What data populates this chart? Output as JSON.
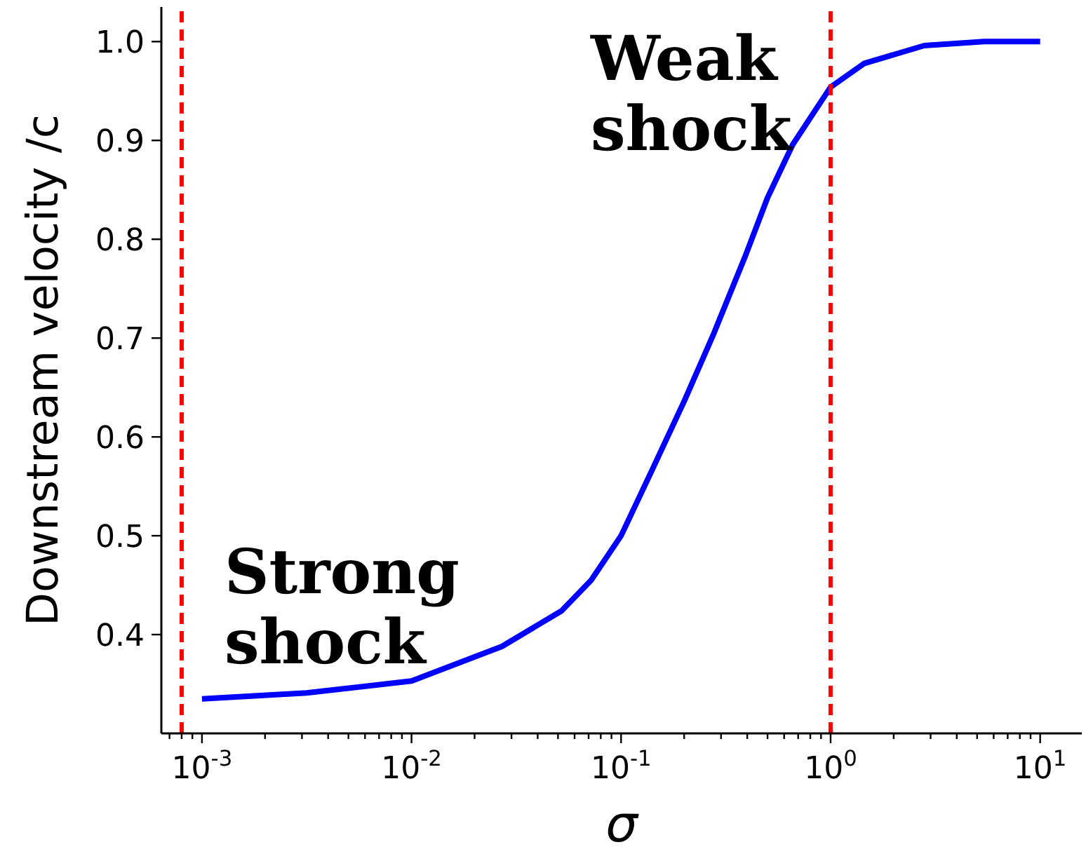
{
  "chart_data": {
    "type": "line",
    "xlabel": "σ",
    "ylabel": "Downstream velocity /c",
    "log": "x",
    "marker": "none",
    "line_style": "solid",
    "x": [
      0.001,
      0.00316,
      0.01,
      0.027,
      0.052,
      0.072,
      0.1,
      0.141,
      0.2,
      0.275,
      0.39,
      0.5,
      0.66,
      1,
      1.45,
      2.8,
      5.4,
      10
    ],
    "series": [
      {
        "color": "#0000ff",
        "values": [
          0.335,
          0.341,
          0.353,
          0.388,
          0.424,
          0.455,
          0.5,
          0.567,
          0.636,
          0.703,
          0.782,
          0.842,
          0.896,
          0.954,
          0.978,
          0.996,
          1.0,
          1.0
        ]
      }
    ],
    "xlim": [
      0.00064,
      15.8
    ],
    "ylim": [
      0.3,
      1.035
    ],
    "xticks": [
      {
        "value": 0.0007,
        "label": null
      },
      {
        "value": 0.0008,
        "label": null
      },
      {
        "value": 0.0009,
        "label": null
      },
      {
        "value": 0.001,
        "label": "10$^{-3}$"
      },
      {
        "value": 0.002,
        "label": null
      },
      {
        "value": 0.003,
        "label": null
      },
      {
        "value": 0.004,
        "label": null
      },
      {
        "value": 0.005,
        "label": null
      },
      {
        "value": 0.006,
        "label": null
      },
      {
        "value": 0.007,
        "label": null
      },
      {
        "value": 0.008,
        "label": null
      },
      {
        "value": 0.009,
        "label": null
      },
      {
        "value": 0.01,
        "label": "10$^{-2}$"
      },
      {
        "value": 0.02,
        "label": null
      },
      {
        "value": 0.03,
        "label": null
      },
      {
        "value": 0.04,
        "label": null
      },
      {
        "value": 0.05,
        "label": null
      },
      {
        "value": 0.06,
        "label": null
      },
      {
        "value": 0.07,
        "label": null
      },
      {
        "value": 0.08,
        "label": null
      },
      {
        "value": 0.09,
        "label": null
      },
      {
        "value": 0.1,
        "label": "10$^{-1}$"
      },
      {
        "value": 0.2,
        "label": null
      },
      {
        "value": 0.3,
        "label": null
      },
      {
        "value": 0.4,
        "label": null
      },
      {
        "value": 0.5,
        "label": null
      },
      {
        "value": 0.6,
        "label": null
      },
      {
        "value": 0.7,
        "label": null
      },
      {
        "value": 0.8,
        "label": null
      },
      {
        "value": 0.9,
        "label": null
      },
      {
        "value": 1,
        "label": "10$^{0}$"
      },
      {
        "value": 2,
        "label": null
      },
      {
        "value": 3,
        "label": null
      },
      {
        "value": 4,
        "label": null
      },
      {
        "value": 5,
        "label": null
      },
      {
        "value": 6,
        "label": null
      },
      {
        "value": 7,
        "label": null
      },
      {
        "value": 8,
        "label": null
      },
      {
        "value": 9,
        "label": null
      },
      {
        "value": 10,
        "label": "10$^{1}$"
      }
    ],
    "yticks": [
      0.4,
      0.5,
      0.6,
      0.7,
      0.8,
      0.9,
      {
        "value": 1.0,
        "label": "1.0"
      }
    ],
    "ref_lines": [
      {
        "axis": "x",
        "value": 0.0008,
        "color": "#ff0000",
        "line_style": "dashed"
      },
      {
        "axis": "x",
        "value": 1,
        "color": "#ff0000",
        "line_style": "dashed"
      }
    ],
    "annotations": [
      "Strong shock",
      "Weak shock"
    ]
  }
}
